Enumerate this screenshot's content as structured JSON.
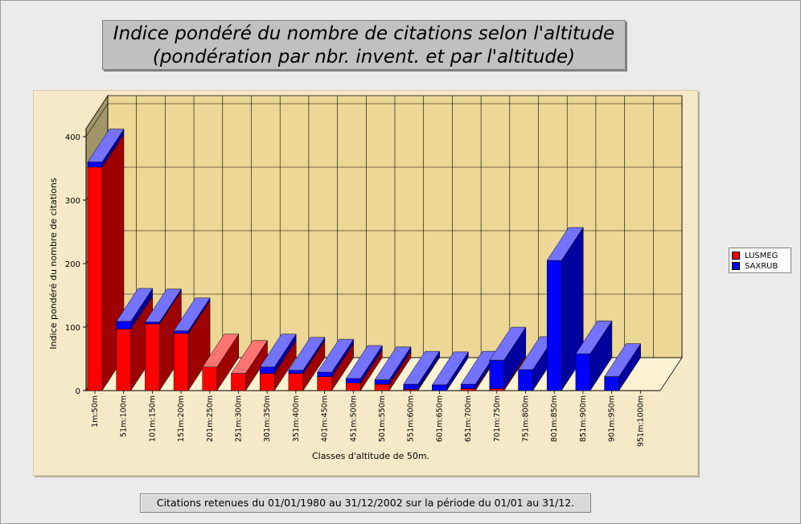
{
  "title_line1": "Indice pondéré du nombre de citations selon l'altitude",
  "title_line2": "(pondération par nbr. invent. et par l'altitude)",
  "footer": "Citations retenues du 01/01/1980 au 31/12/2002 sur la période du 01/01 au 31/12.",
  "colors": {
    "LUSMEG": "#ff0000",
    "SAXRUB": "#0000ff",
    "wall": "#ecd796",
    "side_wall": "#a3956a",
    "floor": "#fdf3d2",
    "panel": "#f6e9c8"
  },
  "chart_data": {
    "type": "bar",
    "stacked": true,
    "three_d": true,
    "xlabel": "Classes d'altitude de 50m.",
    "ylabel": "Indice pondéré du nombre de citations",
    "ylim": [
      0,
      400
    ],
    "yticks": [
      0,
      100,
      200,
      300,
      400
    ],
    "grid": true,
    "legend_position": "right",
    "categories": [
      "1m:50m",
      "51m:100m",
      "101m:150m",
      "151m:200m",
      "201m:250m",
      "251m:300m",
      "301m:350m",
      "351m:400m",
      "401m:450m",
      "451m:500m",
      "501m:550m",
      "551m:600m",
      "601m:650m",
      "651m:700m",
      "701m:750m",
      "751m:800m",
      "801m:850m",
      "851m:900m",
      "901m:950m",
      "951m:1000m"
    ],
    "series": [
      {
        "name": "LUSMEG",
        "values": [
          352,
          97,
          105,
          90,
          37,
          27,
          27,
          27,
          22,
          12,
          10,
          2,
          0,
          3,
          3,
          0,
          0,
          0,
          0,
          0
        ]
      },
      {
        "name": "SAXRUB",
        "values": [
          8,
          12,
          3,
          4,
          0,
          0,
          10,
          5,
          7,
          7,
          7,
          8,
          9,
          7,
          45,
          33,
          205,
          58,
          22,
          0
        ]
      }
    ]
  }
}
